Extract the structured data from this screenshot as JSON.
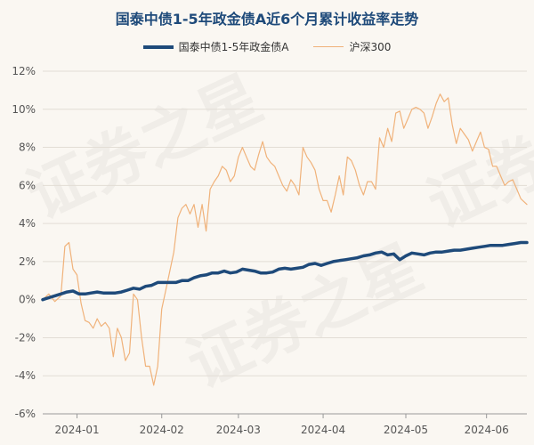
{
  "chart_data": {
    "type": "line",
    "title": "国泰中债1-5年政金债A近6个月累计收益率走势",
    "watermark": "证券之星",
    "x_tick_labels": [
      "2024-01",
      "2024-02",
      "2024-03",
      "2024-04",
      "2024-05",
      "2024-06"
    ],
    "y_tick_labels": [
      "12%",
      "10%",
      "8%",
      "6%",
      "4%",
      "2%",
      "0%",
      "-2%",
      "-4%",
      "-6%"
    ],
    "ylim": [
      -6,
      12
    ],
    "x_unit": "trading-day index",
    "grid": "horizontal",
    "legend_position": "top",
    "series": [
      {
        "name": "国泰中债1-5年政金债A",
        "color": "#1e4a7a",
        "points": [
          [
            0,
            0
          ],
          [
            3,
            0.1
          ],
          [
            6,
            0.2
          ],
          [
            9,
            0.3
          ],
          [
            12,
            0.4
          ],
          [
            15,
            0.45
          ],
          [
            18,
            0.3
          ],
          [
            21,
            0.3
          ],
          [
            24,
            0.35
          ],
          [
            27,
            0.4
          ],
          [
            30,
            0.35
          ],
          [
            33,
            0.35
          ],
          [
            36,
            0.35
          ],
          [
            39,
            0.4
          ],
          [
            42,
            0.5
          ],
          [
            45,
            0.6
          ],
          [
            48,
            0.55
          ],
          [
            51,
            0.7
          ],
          [
            54,
            0.75
          ],
          [
            57,
            0.9
          ],
          [
            60,
            0.9
          ],
          [
            63,
            0.9
          ],
          [
            66,
            0.9
          ],
          [
            69,
            1.0
          ],
          [
            72,
            1.0
          ],
          [
            75,
            1.15
          ],
          [
            78,
            1.25
          ],
          [
            81,
            1.3
          ],
          [
            84,
            1.4
          ],
          [
            87,
            1.4
          ],
          [
            90,
            1.5
          ],
          [
            93,
            1.4
          ],
          [
            96,
            1.45
          ],
          [
            99,
            1.6
          ],
          [
            102,
            1.55
          ],
          [
            105,
            1.5
          ],
          [
            108,
            1.4
          ],
          [
            111,
            1.4
          ],
          [
            114,
            1.45
          ],
          [
            117,
            1.6
          ],
          [
            120,
            1.65
          ],
          [
            123,
            1.6
          ],
          [
            126,
            1.65
          ],
          [
            129,
            1.7
          ],
          [
            132,
            1.85
          ],
          [
            135,
            1.9
          ],
          [
            138,
            1.8
          ],
          [
            141,
            1.9
          ],
          [
            144,
            2.0
          ],
          [
            147,
            2.05
          ],
          [
            150,
            2.1
          ],
          [
            153,
            2.15
          ],
          [
            156,
            2.2
          ],
          [
            159,
            2.3
          ],
          [
            162,
            2.35
          ],
          [
            165,
            2.45
          ],
          [
            168,
            2.5
          ],
          [
            171,
            2.35
          ],
          [
            174,
            2.4
          ],
          [
            177,
            2.1
          ],
          [
            180,
            2.3
          ],
          [
            183,
            2.45
          ],
          [
            186,
            2.4
          ],
          [
            189,
            2.35
          ],
          [
            192,
            2.45
          ],
          [
            195,
            2.5
          ],
          [
            198,
            2.5
          ],
          [
            201,
            2.55
          ],
          [
            204,
            2.6
          ],
          [
            207,
            2.6
          ],
          [
            210,
            2.65
          ],
          [
            213,
            2.7
          ],
          [
            216,
            2.75
          ],
          [
            219,
            2.8
          ],
          [
            222,
            2.85
          ],
          [
            225,
            2.85
          ],
          [
            228,
            2.85
          ],
          [
            231,
            2.9
          ],
          [
            234,
            2.95
          ],
          [
            237,
            3.0
          ],
          [
            240,
            3.0
          ]
        ]
      },
      {
        "name": "沪深300",
        "color": "#f0b27a",
        "points": [
          [
            0,
            0
          ],
          [
            3,
            0.3
          ],
          [
            6,
            -0.1
          ],
          [
            9,
            0.2
          ],
          [
            11,
            2.8
          ],
          [
            13,
            3.0
          ],
          [
            15,
            1.6
          ],
          [
            17,
            1.3
          ],
          [
            19,
            -0.2
          ],
          [
            21,
            -1.1
          ],
          [
            23,
            -1.2
          ],
          [
            25,
            -1.5
          ],
          [
            27,
            -1.0
          ],
          [
            29,
            -1.4
          ],
          [
            31,
            -1.2
          ],
          [
            33,
            -1.5
          ],
          [
            35,
            -3.0
          ],
          [
            37,
            -1.5
          ],
          [
            39,
            -2.0
          ],
          [
            41,
            -3.2
          ],
          [
            43,
            -2.8
          ],
          [
            45,
            0.3
          ],
          [
            47,
            0.0
          ],
          [
            49,
            -2.0
          ],
          [
            51,
            -3.5
          ],
          [
            53,
            -3.5
          ],
          [
            55,
            -4.5
          ],
          [
            57,
            -3.5
          ],
          [
            59,
            -0.5
          ],
          [
            61,
            0.5
          ],
          [
            63,
            1.5
          ],
          [
            65,
            2.5
          ],
          [
            67,
            4.3
          ],
          [
            69,
            4.8
          ],
          [
            71,
            5.0
          ],
          [
            73,
            4.5
          ],
          [
            75,
            5.0
          ],
          [
            77,
            3.8
          ],
          [
            79,
            5.0
          ],
          [
            81,
            3.6
          ],
          [
            83,
            5.8
          ],
          [
            85,
            6.2
          ],
          [
            87,
            6.5
          ],
          [
            89,
            7.0
          ],
          [
            91,
            6.8
          ],
          [
            93,
            6.2
          ],
          [
            95,
            6.5
          ],
          [
            97,
            7.5
          ],
          [
            99,
            8.0
          ],
          [
            101,
            7.5
          ],
          [
            103,
            7.0
          ],
          [
            105,
            6.8
          ],
          [
            107,
            7.6
          ],
          [
            109,
            8.3
          ],
          [
            111,
            7.5
          ],
          [
            113,
            7.2
          ],
          [
            115,
            7.0
          ],
          [
            117,
            6.5
          ],
          [
            119,
            6.0
          ],
          [
            121,
            5.7
          ],
          [
            123,
            6.3
          ],
          [
            125,
            6.0
          ],
          [
            127,
            5.5
          ],
          [
            129,
            8.0
          ],
          [
            131,
            7.5
          ],
          [
            133,
            7.2
          ],
          [
            135,
            6.8
          ],
          [
            137,
            5.8
          ],
          [
            139,
            5.2
          ],
          [
            141,
            5.2
          ],
          [
            143,
            4.6
          ],
          [
            145,
            5.5
          ],
          [
            147,
            6.5
          ],
          [
            149,
            5.5
          ],
          [
            151,
            7.5
          ],
          [
            153,
            7.3
          ],
          [
            155,
            6.8
          ],
          [
            157,
            6.0
          ],
          [
            159,
            5.5
          ],
          [
            161,
            6.2
          ],
          [
            163,
            6.2
          ],
          [
            165,
            5.8
          ],
          [
            167,
            8.5
          ],
          [
            169,
            8.0
          ],
          [
            171,
            9.0
          ],
          [
            173,
            8.3
          ],
          [
            175,
            9.8
          ],
          [
            177,
            9.9
          ],
          [
            179,
            9.0
          ],
          [
            181,
            9.5
          ],
          [
            183,
            10.0
          ],
          [
            185,
            10.1
          ],
          [
            187,
            10.0
          ],
          [
            189,
            9.8
          ],
          [
            191,
            9.0
          ],
          [
            193,
            9.6
          ],
          [
            195,
            10.3
          ],
          [
            197,
            10.8
          ],
          [
            199,
            10.4
          ],
          [
            201,
            10.6
          ],
          [
            203,
            9.2
          ],
          [
            205,
            8.2
          ],
          [
            207,
            9.0
          ],
          [
            209,
            8.7
          ],
          [
            211,
            8.4
          ],
          [
            213,
            7.8
          ],
          [
            215,
            8.3
          ],
          [
            217,
            8.8
          ],
          [
            219,
            8.0
          ],
          [
            221,
            7.9
          ],
          [
            223,
            7.0
          ],
          [
            225,
            7.0
          ],
          [
            227,
            6.5
          ],
          [
            229,
            6.0
          ],
          [
            231,
            6.2
          ],
          [
            233,
            6.3
          ],
          [
            235,
            5.8
          ],
          [
            237,
            5.3
          ],
          [
            240,
            5.0
          ]
        ]
      }
    ]
  }
}
